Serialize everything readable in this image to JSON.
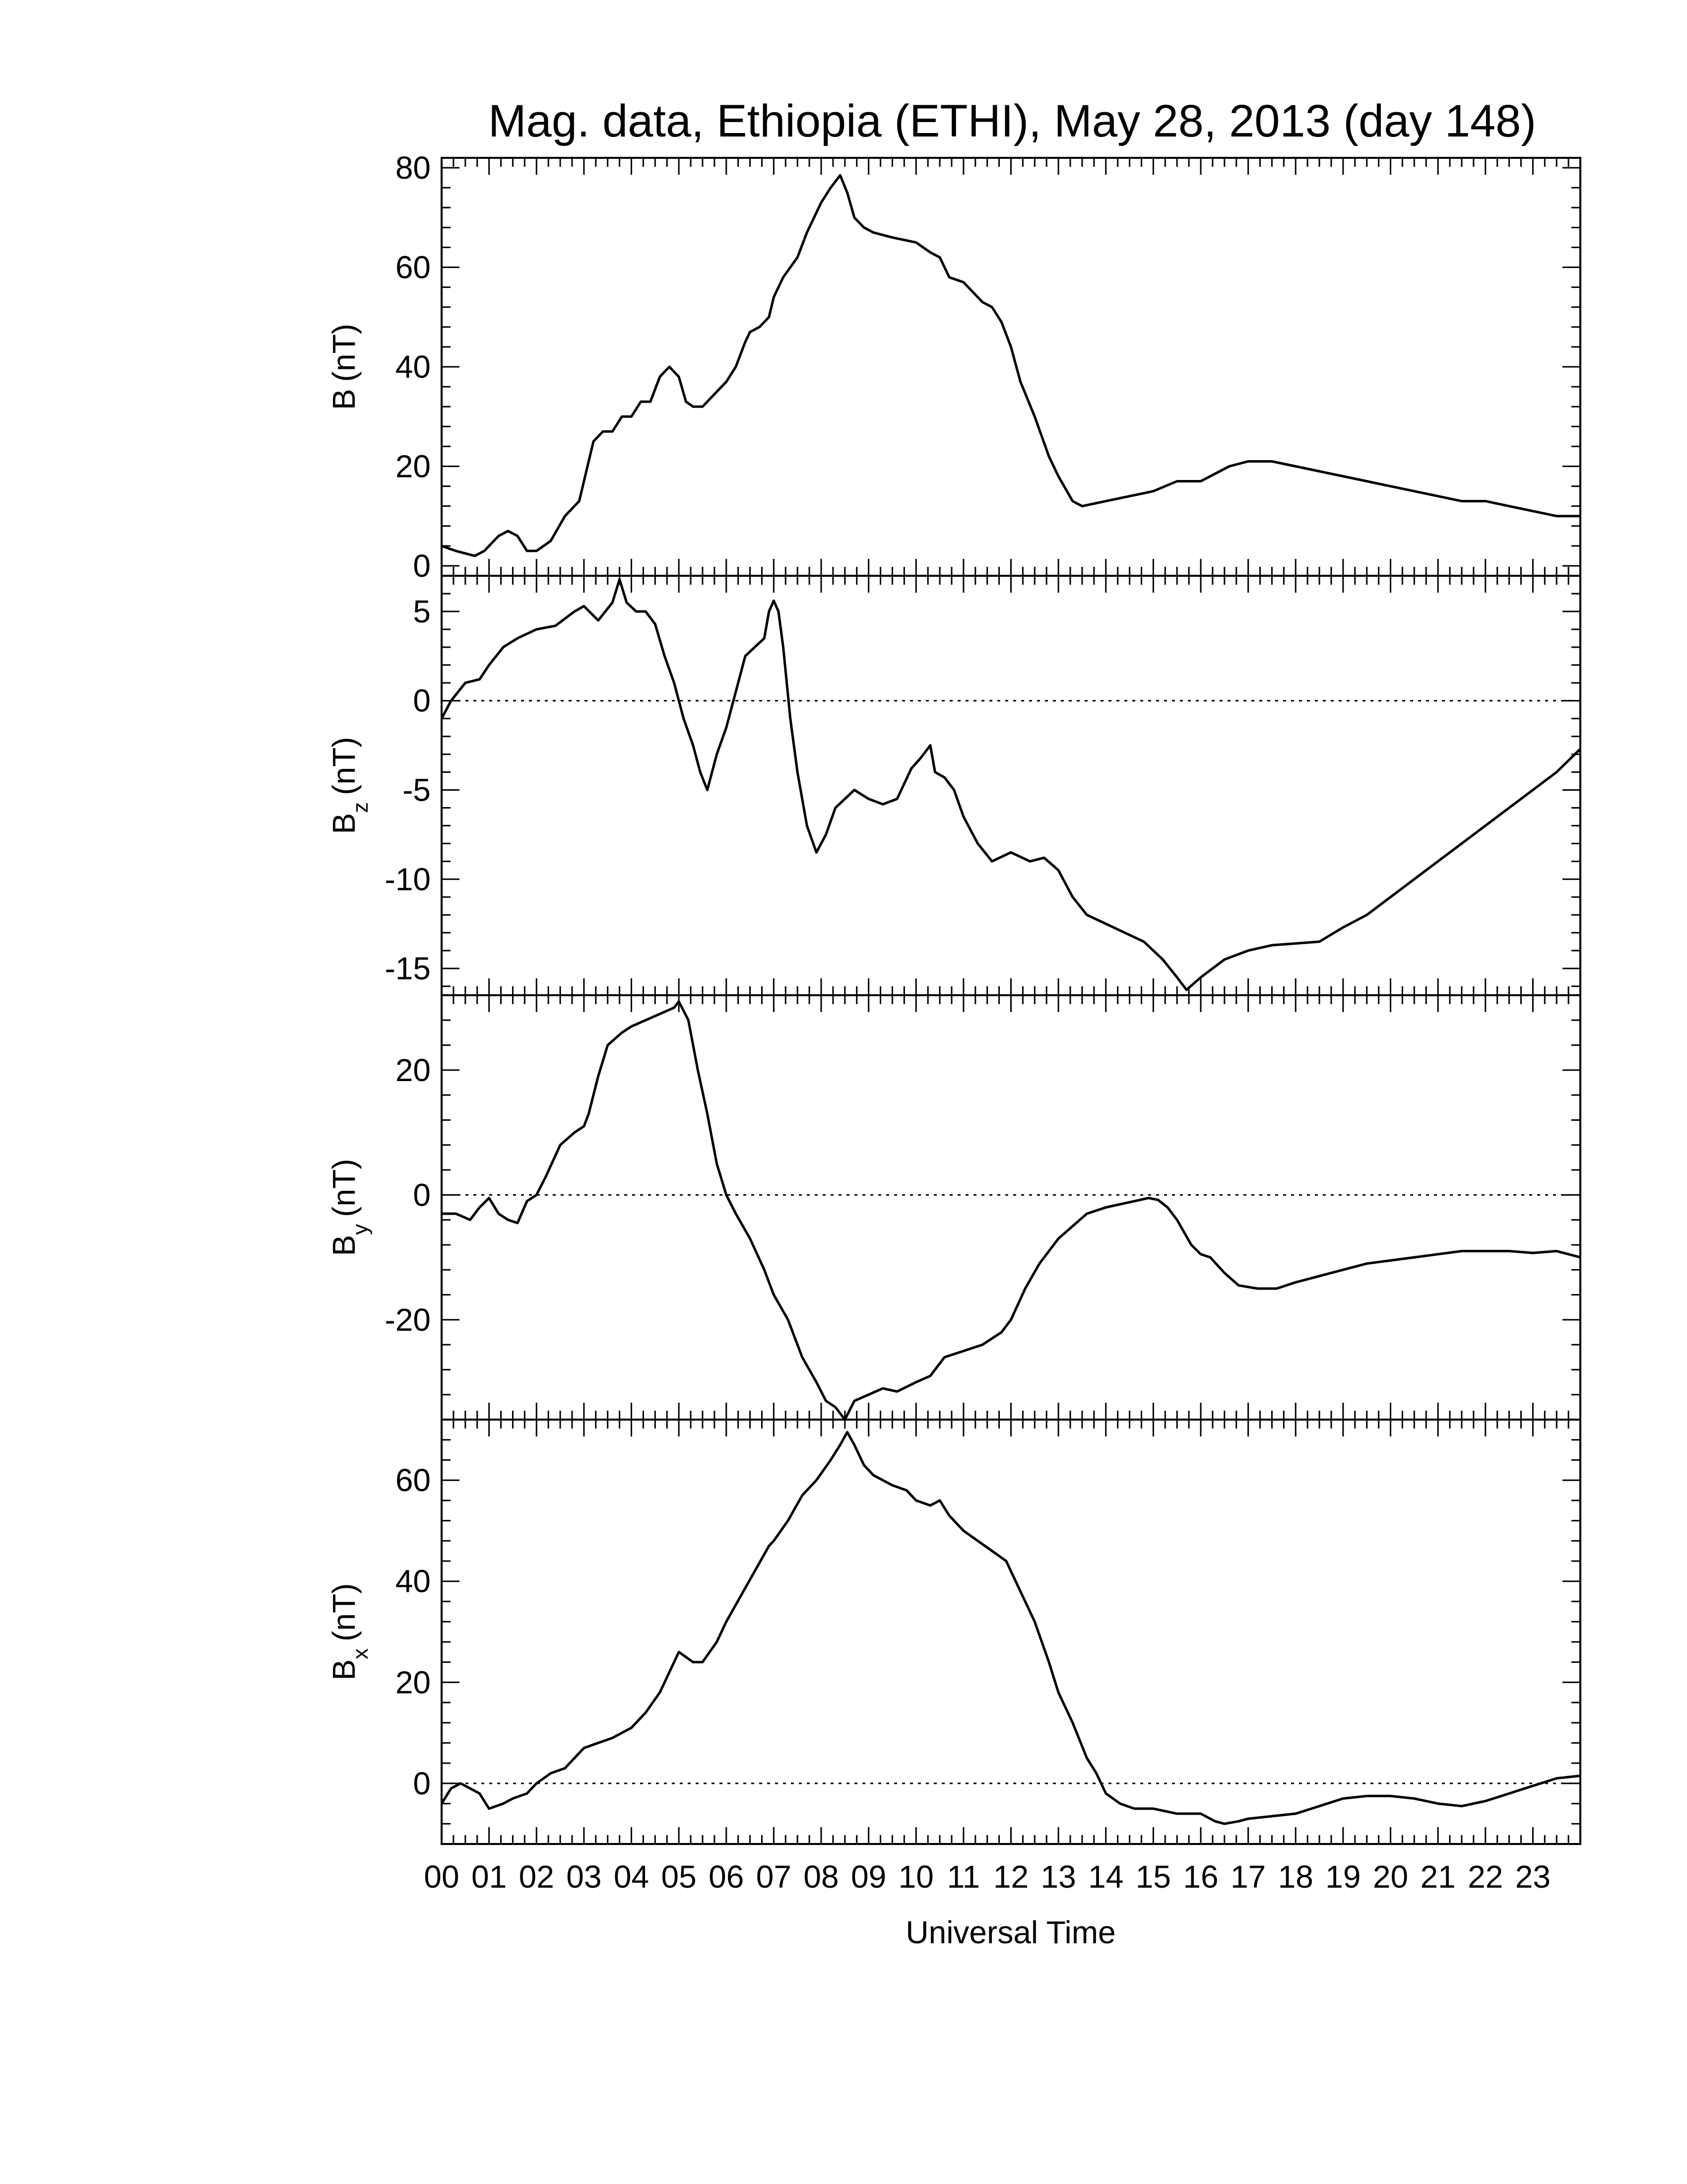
{
  "chart_data": {
    "type": "line",
    "title": "Mag. data, Ethiopia (ETHI), May 28, 2013 (day 148)",
    "xlabel": "Universal Time",
    "x_unit": "hours UT",
    "xlim": [
      0,
      24
    ],
    "x_tick_labels": [
      "00",
      "01",
      "02",
      "03",
      "04",
      "05",
      "06",
      "07",
      "08",
      "09",
      "10",
      "11",
      "12",
      "13",
      "14",
      "15",
      "16",
      "17",
      "18",
      "19",
      "20",
      "21",
      "22",
      "23"
    ],
    "x_tick_values": [
      0,
      1,
      2,
      3,
      4,
      5,
      6,
      7,
      8,
      9,
      10,
      11,
      12,
      13,
      14,
      15,
      16,
      17,
      18,
      19,
      20,
      21,
      22,
      23
    ],
    "panels": [
      {
        "ylabel_main": "B",
        "ylabel_sub": "",
        "ylabel_unit": "(nT)",
        "ylim": [
          -2,
          82
        ],
        "y_ticks": [
          0,
          20,
          40,
          60,
          80
        ],
        "y_tick_labels": [
          "0",
          "20",
          "40",
          "60",
          "80"
        ],
        "zero_line": false,
        "series": [
          {
            "x": [
              0,
              0.3,
              0.5,
              0.7,
              0.9,
              1.2,
              1.4,
              1.6,
              1.8,
              2.0,
              2.3,
              2.6,
              2.9,
              3.0,
              3.2,
              3.4,
              3.6,
              3.8,
              4.0,
              4.2,
              4.4,
              4.6,
              4.8,
              5.0,
              5.15,
              5.3,
              5.5,
              5.6,
              5.8,
              6.0,
              6.2,
              6.4,
              6.5,
              6.7,
              6.9,
              7.0,
              7.2,
              7.5,
              7.7,
              8.0,
              8.2,
              8.4,
              8.55,
              8.7,
              8.9,
              9.1,
              9.5,
              10.0,
              10.3,
              10.5,
              10.7,
              11.0,
              11.2,
              11.4,
              11.6,
              11.8,
              12.0,
              12.2,
              12.5,
              12.8,
              13.0,
              13.3,
              13.5,
              14.0,
              14.5,
              15.0,
              15.5,
              16.0,
              16.2,
              16.4,
              16.6,
              17.0,
              17.5,
              18.0,
              18.5,
              19.0,
              19.5,
              20.0,
              20.5,
              21.0,
              21.5,
              22.0,
              22.5,
              23.0,
              23.5,
              24.0
            ],
            "y": [
              4,
              3,
              2.5,
              2,
              3,
              6,
              7,
              6,
              3,
              3,
              5,
              10,
              13,
              17,
              25,
              27,
              27,
              30,
              30,
              33,
              33,
              38,
              40,
              38,
              33,
              32,
              32,
              33,
              35,
              37,
              40,
              45,
              47,
              48,
              50,
              54,
              58,
              62,
              67,
              73,
              76,
              78.5,
              75,
              70,
              68,
              67,
              66,
              65,
              63,
              62,
              58,
              57,
              55,
              53,
              52,
              49,
              44,
              37,
              30,
              22,
              18,
              13,
              12,
              13,
              14,
              15,
              17,
              17,
              18,
              19,
              20,
              21,
              21,
              20,
              19,
              18,
              17,
              16,
              15,
              14,
              13,
              13,
              12,
              11,
              10,
              10
            ]
          }
        ]
      },
      {
        "ylabel_main": "B",
        "ylabel_sub": "z",
        "ylabel_unit": "(nT)",
        "ylim": [
          -16.5,
          7
        ],
        "y_ticks": [
          -15,
          -10,
          -5,
          0,
          5
        ],
        "y_tick_labels": [
          "-15",
          "-10",
          "-5",
          "0",
          "5"
        ],
        "zero_line": true,
        "series": [
          {
            "x": [
              0,
              0.2,
              0.5,
              0.8,
              1.0,
              1.3,
              1.6,
              2.0,
              2.4,
              2.8,
              3.0,
              3.3,
              3.6,
              3.75,
              3.9,
              4.1,
              4.3,
              4.5,
              4.7,
              4.9,
              5.1,
              5.3,
              5.45,
              5.6,
              5.8,
              6.0,
              6.2,
              6.4,
              6.6,
              6.8,
              6.9,
              7.0,
              7.1,
              7.2,
              7.35,
              7.5,
              7.7,
              7.9,
              8.1,
              8.3,
              8.5,
              8.7,
              9.0,
              9.3,
              9.6,
              9.9,
              10.1,
              10.3,
              10.4,
              10.6,
              10.8,
              11.0,
              11.3,
              11.6,
              12.0,
              12.4,
              12.7,
              13.0,
              13.3,
              13.6,
              14.0,
              14.4,
              14.8,
              15.2,
              15.5,
              15.7,
              16.0,
              16.5,
              17.0,
              17.5,
              18.0,
              18.5,
              19.0,
              19.5,
              20.0,
              20.5,
              21.0,
              21.5,
              22.0,
              22.5,
              23.0,
              23.5,
              24.0
            ],
            "y": [
              -1,
              0,
              1,
              1.2,
              2,
              3,
              3.5,
              4,
              4.2,
              5,
              5.3,
              4.5,
              5.5,
              6.8,
              5.5,
              5,
              5,
              4.3,
              2.5,
              1,
              -1,
              -2.5,
              -4,
              -5,
              -3,
              -1.5,
              0.5,
              2.5,
              3,
              3.5,
              5,
              5.6,
              5,
              3,
              -1,
              -4,
              -7,
              -8.5,
              -7.5,
              -6,
              -5.5,
              -5,
              -5.5,
              -5.8,
              -5.5,
              -3.8,
              -3.2,
              -2.5,
              -4,
              -4.3,
              -5,
              -6.5,
              -8,
              -9,
              -8.5,
              -9,
              -8.8,
              -9.5,
              -11,
              -12,
              -12.5,
              -13,
              -13.5,
              -14.5,
              -15.5,
              -16.2,
              -15.5,
              -14.5,
              -14,
              -13.7,
              -13.6,
              -13.5,
              -12.7,
              -12,
              -11,
              -10,
              -9,
              -8,
              -7,
              -6,
              -5,
              -4,
              -2.7
            ]
          }
        ]
      },
      {
        "ylabel_main": "B",
        "ylabel_sub": "y",
        "ylabel_unit": "(nT)",
        "ylim": [
          -36,
          32
        ],
        "y_ticks": [
          -20,
          0,
          20
        ],
        "y_tick_labels": [
          "-20",
          "0",
          "20"
        ],
        "zero_line": true,
        "series": [
          {
            "x": [
              0,
              0.3,
              0.6,
              0.8,
              1.0,
              1.2,
              1.4,
              1.6,
              1.8,
              2.0,
              2.2,
              2.5,
              2.8,
              3.0,
              3.1,
              3.3,
              3.5,
              3.8,
              4.0,
              4.3,
              4.6,
              4.9,
              5.0,
              5.2,
              5.4,
              5.6,
              5.8,
              6.0,
              6.2,
              6.5,
              6.8,
              7.0,
              7.3,
              7.6,
              7.9,
              8.1,
              8.3,
              8.5,
              8.7,
              9.0,
              9.3,
              9.6,
              10.0,
              10.3,
              10.6,
              11.0,
              11.4,
              11.8,
              12.0,
              12.3,
              12.6,
              13.0,
              13.3,
              13.6,
              14.0,
              14.3,
              14.6,
              14.9,
              15.1,
              15.3,
              15.5,
              15.8,
              16.0,
              16.2,
              16.5,
              16.8,
              17.2,
              17.6,
              18.0,
              18.5,
              19.0,
              19.5,
              20.0,
              20.5,
              21.0,
              21.5,
              22.0,
              22.5,
              23.0,
              23.5,
              24.0
            ],
            "y": [
              -3,
              -3,
              -4,
              -2,
              -0.5,
              -3,
              -4,
              -4.5,
              -1,
              0,
              3,
              8,
              10,
              11,
              13,
              19,
              24,
              26,
              27,
              28,
              29,
              30,
              31,
              28,
              20,
              13,
              5,
              0,
              -3,
              -7,
              -12,
              -16,
              -20,
              -26,
              -30,
              -33,
              -34,
              -36,
              -33,
              -32,
              -31,
              -31.5,
              -30,
              -29,
              -26,
              -25,
              -24,
              -22,
              -20,
              -15,
              -11,
              -7,
              -5,
              -3,
              -2,
              -1.5,
              -1,
              -0.5,
              -0.8,
              -2,
              -4,
              -8,
              -9.5,
              -10,
              -12.5,
              -14.5,
              -15,
              -15,
              -14,
              -13,
              -12,
              -11,
              -10.5,
              -10,
              -9.5,
              -9,
              -9,
              -9,
              -9.3,
              -9,
              -10
            ]
          }
        ]
      },
      {
        "ylabel_main": "B",
        "ylabel_sub": "x",
        "ylabel_unit": "(nT)",
        "ylim": [
          -12,
          72
        ],
        "y_ticks": [
          0,
          20,
          40,
          60
        ],
        "y_tick_labels": [
          "0",
          "20",
          "40",
          "60"
        ],
        "zero_line": true,
        "series": [
          {
            "x": [
              0,
              0.2,
              0.4,
              0.6,
              0.8,
              1.0,
              1.3,
              1.5,
              1.8,
              2.0,
              2.3,
              2.6,
              3.0,
              3.3,
              3.6,
              4.0,
              4.3,
              4.6,
              4.9,
              5.0,
              5.15,
              5.3,
              5.5,
              5.8,
              6.0,
              6.3,
              6.6,
              6.9,
              7.0,
              7.3,
              7.6,
              7.9,
              8.2,
              8.4,
              8.55,
              8.7,
              8.9,
              9.1,
              9.5,
              9.8,
              10.0,
              10.3,
              10.5,
              10.7,
              11.0,
              11.3,
              11.6,
              11.9,
              12.2,
              12.5,
              12.8,
              13.0,
              13.3,
              13.6,
              13.8,
              14.0,
              14.3,
              14.6,
              15.0,
              15.5,
              16.0,
              16.3,
              16.5,
              16.8,
              17.0,
              17.5,
              18.0,
              18.5,
              19.0,
              19.5,
              20.0,
              20.5,
              21.0,
              21.5,
              22.0,
              22.5,
              23.0,
              23.5,
              24.0
            ],
            "y": [
              -4,
              -1,
              0,
              -1,
              -2,
              -5,
              -4,
              -3,
              -2,
              0,
              2,
              3,
              7,
              8,
              9,
              11,
              14,
              18,
              24,
              26,
              25,
              24,
              24,
              28,
              32,
              37,
              42,
              47,
              48,
              52,
              57,
              60,
              64,
              67,
              69.5,
              67,
              63,
              61,
              59,
              58,
              56,
              55,
              56,
              53,
              50,
              48,
              46,
              44,
              38,
              32,
              24,
              18,
              12,
              5,
              2,
              -2,
              -4,
              -5,
              -5,
              -6,
              -6,
              -7.5,
              -8,
              -7.5,
              -7,
              -6.5,
              -6,
              -4.5,
              -3,
              -2.5,
              -2.5,
              -3,
              -4,
              -4.5,
              -3.5,
              -2,
              -0.5,
              1,
              1.5
            ]
          }
        ]
      }
    ]
  }
}
